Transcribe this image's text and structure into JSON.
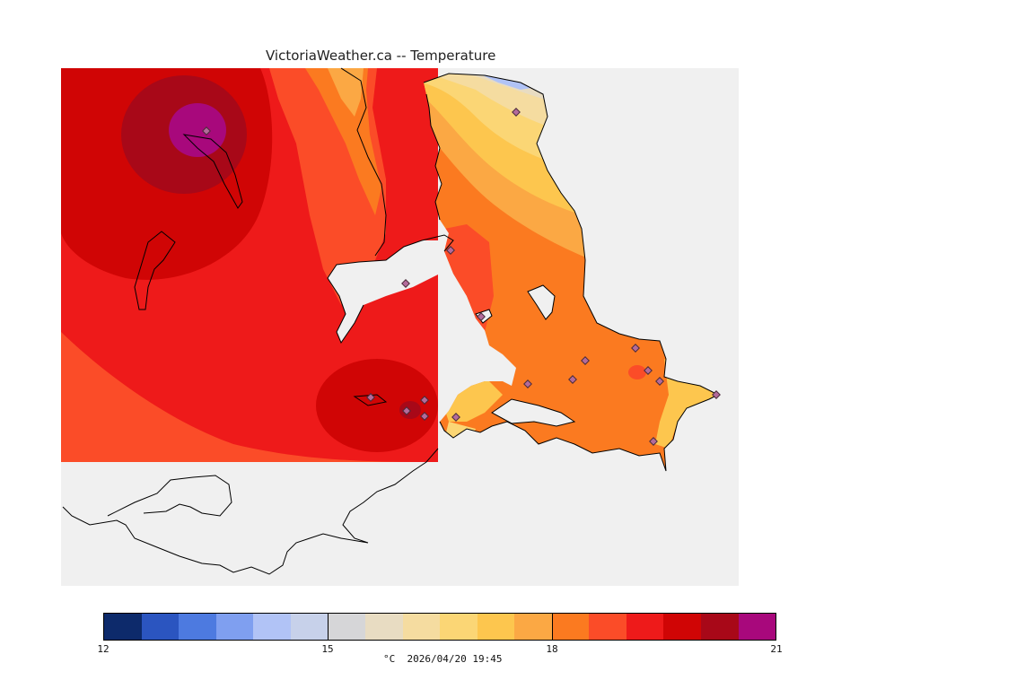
{
  "title": "VictoriaWeather.ca -- Temperature",
  "colorbar": {
    "colors": [
      "#0d2a6b",
      "#2b55c0",
      "#4d7ae0",
      "#7f9ff0",
      "#b1c3f6",
      "#c7d1ea",
      "#d6d6d8",
      "#e8dcc2",
      "#f5dca0",
      "#fbd675",
      "#fdc64e",
      "#fba844",
      "#fb7a20",
      "#fb4c28",
      "#ee1a1a",
      "#d00505",
      "#a80818",
      "#a8087c"
    ],
    "ticks": [
      "12",
      "15",
      "18",
      "21"
    ],
    "units_time": "°C  2026/04/20 19:45"
  },
  "map": {
    "background": "#f0f0f0",
    "land_no_data": "#ffffff",
    "stations": 18
  }
}
